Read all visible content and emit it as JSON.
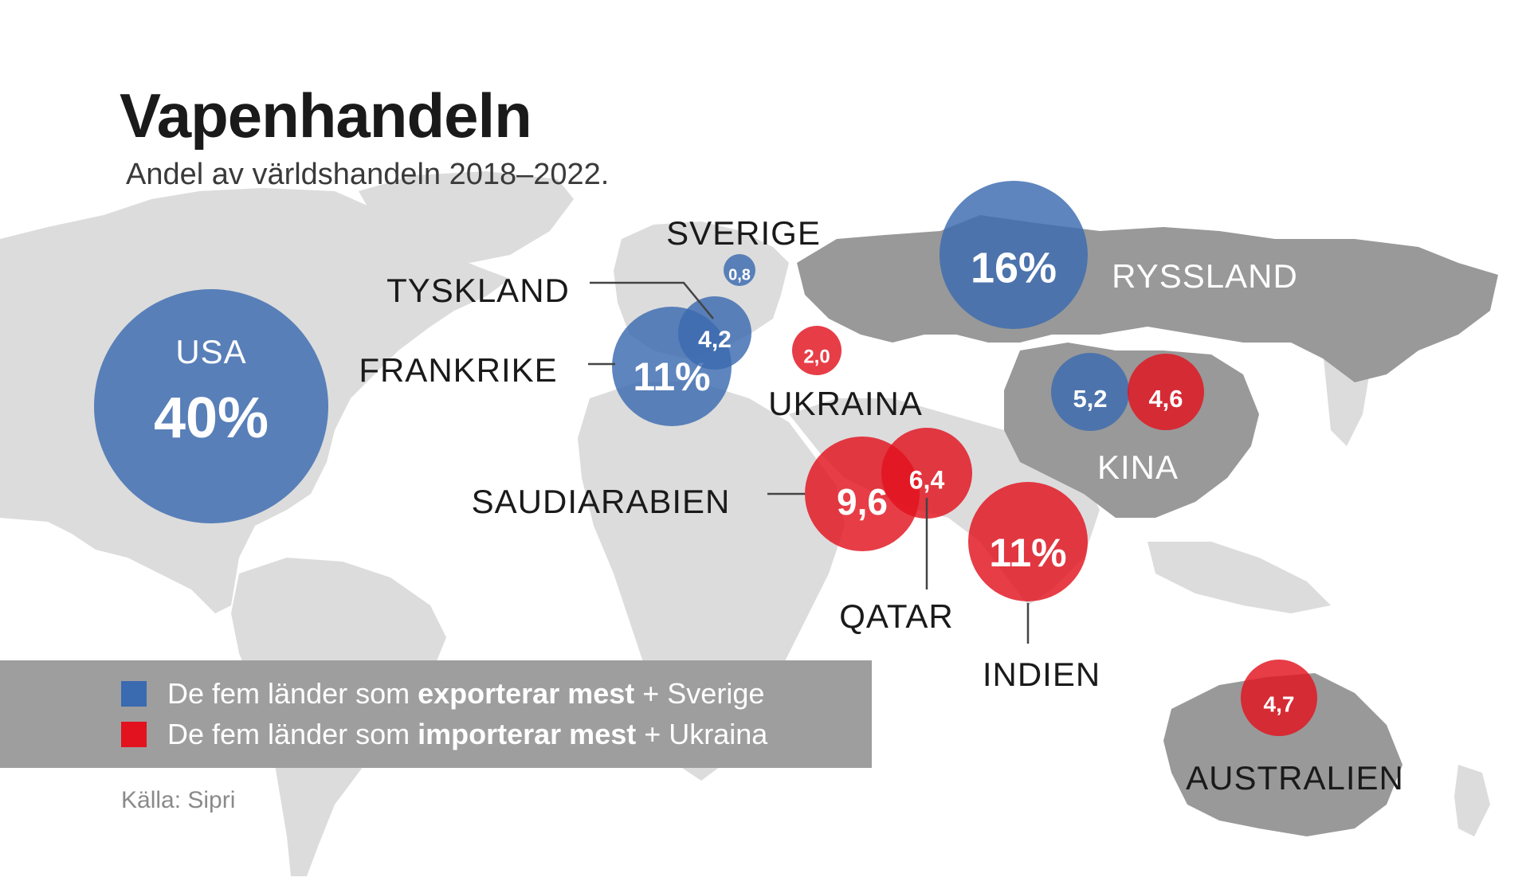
{
  "title": "Vapenhandeln",
  "subtitle": "Andel av världshandeln 2018–2022.",
  "source": "Källa: Sipri",
  "colors": {
    "exporter": "#3a6ab0",
    "importer": "#e2121e",
    "land_light": "#dcdcdc",
    "land_dark": "#999999"
  },
  "legend": [
    {
      "pre": "De fem länder som ",
      "bold": "exporterar mest",
      "post": " + Sverige",
      "color": "#3a6ab0"
    },
    {
      "pre": "De fem länder som ",
      "bold": "importerar mest",
      "post": " + Ukraina",
      "color": "#e2121e"
    }
  ],
  "countries": [
    {
      "name": "USA",
      "value": "40%",
      "share": 40,
      "role": "exporter"
    },
    {
      "name": "RYSSLAND",
      "value": "16%",
      "share": 16,
      "role": "exporter"
    },
    {
      "name": "FRANKRIKE",
      "value": "11%",
      "share": 11,
      "role": "exporter"
    },
    {
      "name": "KINA",
      "value": "5,2",
      "share": 5.2,
      "role": "exporter"
    },
    {
      "name": "TYSKLAND",
      "value": "4,2",
      "share": 4.2,
      "role": "exporter"
    },
    {
      "name": "SVERIGE",
      "value": "0,8",
      "share": 0.8,
      "role": "exporter"
    },
    {
      "name": "INDIEN",
      "value": "11%",
      "share": 11,
      "role": "importer"
    },
    {
      "name": "SAUDIARABIEN",
      "value": "9,6",
      "share": 9.6,
      "role": "importer"
    },
    {
      "name": "QATAR",
      "value": "6,4",
      "share": 6.4,
      "role": "importer"
    },
    {
      "name": "AUSTRALIEN",
      "value": "4,7",
      "share": 4.7,
      "role": "importer"
    },
    {
      "name": "KINA",
      "value": "4,6",
      "share": 4.6,
      "role": "importer"
    },
    {
      "name": "UKRAINA",
      "value": "2,0",
      "share": 2.0,
      "role": "importer"
    }
  ]
}
